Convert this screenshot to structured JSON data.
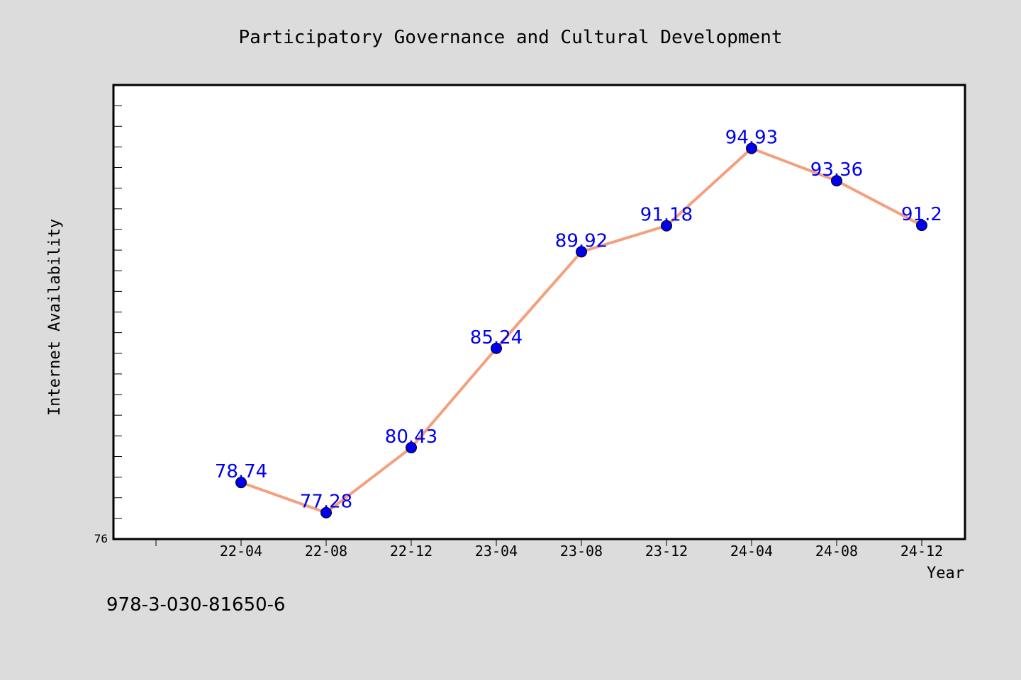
{
  "chart_data": {
    "type": "line",
    "title": "Participatory Governance and Cultural Development",
    "xlabel": "Year",
    "ylabel": "Internet Availability",
    "categories": [
      "22-04",
      "22-08",
      "22-12",
      "23-04",
      "23-08",
      "23-12",
      "24-04",
      "24-08",
      "24-12"
    ],
    "series": [
      {
        "values": [
          78.74,
          77.28,
          80.43,
          85.24,
          89.92,
          91.18,
          94.93,
          93.36,
          91.2
        ],
        "labels": [
          "78.74",
          "77.28",
          "80.43",
          "85.24",
          "89.92",
          "91.18",
          "94.93",
          "93.36",
          "91.2"
        ],
        "line_color": "#f4a07e",
        "marker_color": "#0000ee",
        "label_color": "#0000ee"
      }
    ],
    "ylim": [
      76,
      98
    ],
    "y_min_label": "76",
    "grid": false,
    "legend": "none"
  },
  "footer": {
    "isbn": "978-3-030-81650-6"
  }
}
